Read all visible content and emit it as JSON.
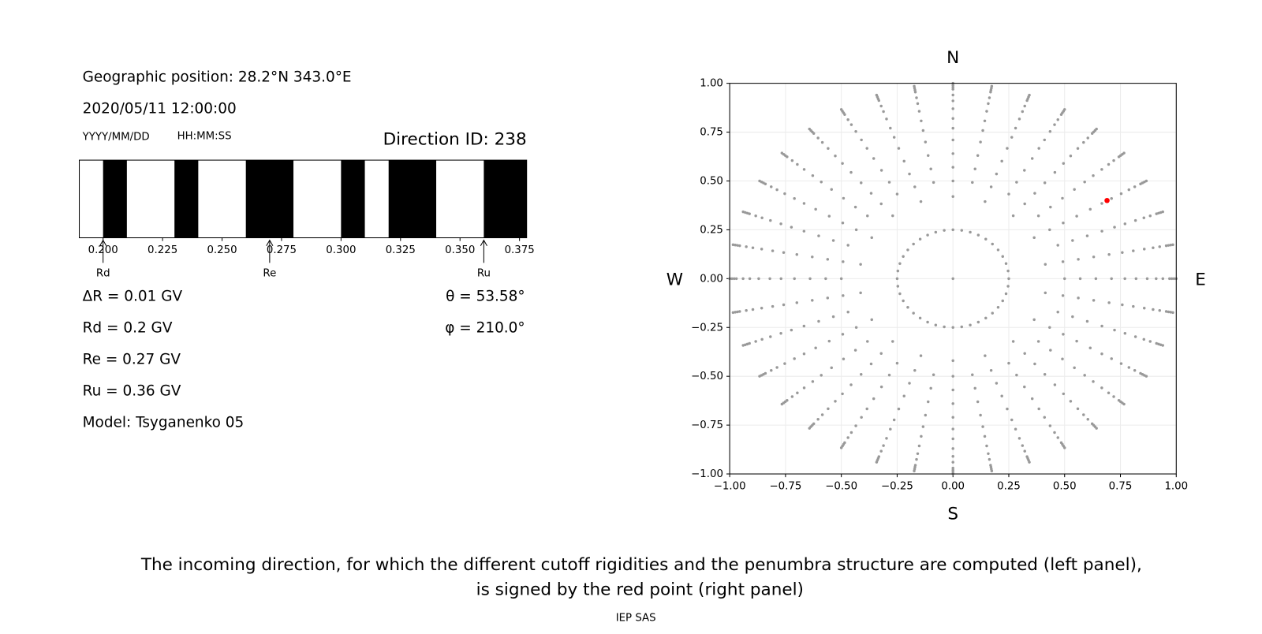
{
  "header": {
    "position": "Geographic position: 28.2°N 343.0°E",
    "datetime": "2020/05/11 12:00:00",
    "date_format": "YYYY/MM/DD",
    "time_format": "HH:MM:SS",
    "direction_id": "Direction ID: 238"
  },
  "parameters": [
    "ΔR = 0.01 GV",
    "Rd = 0.2 GV",
    "Re = 0.27 GV",
    "Ru = 0.36 GV",
    "Model: Tsyganenko 05"
  ],
  "angles": [
    "θ = 53.58°",
    "φ = 210.0°"
  ],
  "caption": [
    "The incoming direction, for which the different cutoff rigidities and the penumbra structure are computed (left panel),",
    "is signed by the red point (right panel)"
  ],
  "footer": "IEP SAS",
  "chart_data": [
    {
      "type": "penumbra",
      "color": "#000000",
      "xlim": [
        0.19,
        0.378
      ],
      "xticks": [
        {
          "value": 0.2,
          "label": "0.200"
        },
        {
          "value": 0.225,
          "label": "0.225"
        },
        {
          "value": 0.25,
          "label": "0.250"
        },
        {
          "value": 0.275,
          "label": "0.275"
        },
        {
          "value": 0.3,
          "label": "0.300"
        },
        {
          "value": 0.325,
          "label": "0.325"
        },
        {
          "value": 0.35,
          "label": "0.350"
        },
        {
          "value": 0.375,
          "label": "0.375"
        }
      ],
      "forbidden_bands": [
        [
          0.2,
          0.21
        ],
        [
          0.23,
          0.24
        ],
        [
          0.26,
          0.28
        ],
        [
          0.3,
          0.31
        ],
        [
          0.32,
          0.34
        ],
        [
          0.36,
          0.378
        ]
      ],
      "markers": [
        {
          "name": "Rd",
          "value": 0.2
        },
        {
          "name": "Re",
          "value": 0.27
        },
        {
          "name": "Ru",
          "value": 0.36
        }
      ]
    },
    {
      "type": "scatter",
      "grid": true,
      "xlim": [
        -1,
        1
      ],
      "ylim": [
        -1,
        1
      ],
      "xticks": [
        {
          "value": -1,
          "label": "−1.00"
        },
        {
          "value": -0.75,
          "label": "−0.75"
        },
        {
          "value": -0.5,
          "label": "−0.50"
        },
        {
          "value": -0.25,
          "label": "−0.25"
        },
        {
          "value": 0,
          "label": "0.00"
        },
        {
          "value": 0.25,
          "label": "0.25"
        },
        {
          "value": 0.5,
          "label": "0.50"
        },
        {
          "value": 0.75,
          "label": "0.75"
        },
        {
          "value": 1,
          "label": "1.00"
        }
      ],
      "yticks": [
        {
          "value": -1,
          "label": "−1.00"
        },
        {
          "value": -0.75,
          "label": "−0.75"
        },
        {
          "value": -0.5,
          "label": "−0.50"
        },
        {
          "value": -0.25,
          "label": "−0.25"
        },
        {
          "value": 0,
          "label": "0.00"
        },
        {
          "value": 0.25,
          "label": "0.25"
        },
        {
          "value": 0.5,
          "label": "0.50"
        },
        {
          "value": 0.75,
          "label": "0.75"
        },
        {
          "value": 1,
          "label": "1.00"
        }
      ],
      "directions": {
        "N": "N",
        "S": "S",
        "E": "E",
        "W": "W"
      },
      "grid_points": {
        "color": "#999999",
        "groups": [
          {
            "radii": [
              0
            ],
            "azimuths": [
              0
            ]
          },
          {
            "radii": [
              0.25
            ],
            "azimuths": [
              0,
              9,
              18,
              27,
              36,
              45,
              54,
              63,
              72,
              81,
              90,
              99,
              108,
              117,
              126,
              135,
              144,
              153,
              162,
              171,
              180,
              189,
              198,
              207,
              216,
              225,
              234,
              243,
              252,
              261,
              270,
              279,
              288,
              297,
              306,
              315,
              324,
              333,
              342,
              351
            ]
          },
          {
            "radii": [
              0.42
            ],
            "azimuths": [
              0,
              20,
              40,
              60,
              80,
              100,
              120,
              140,
              160,
              180,
              200,
              220,
              240,
              260,
              280,
              300,
              320,
              340
            ]
          },
          {
            "radii": [
              0.5,
              0.57,
              0.64,
              0.71,
              0.77,
              0.82,
              0.87,
              0.91,
              0.94,
              0.97,
              0.98,
              0.99,
              1.0
            ],
            "azimuths": [
              0,
              10,
              20,
              30,
              40,
              50,
              60,
              70,
              80,
              90,
              100,
              110,
              120,
              130,
              140,
              150,
              160,
              170,
              180,
              190,
              200,
              210,
              220,
              230,
              240,
              250,
              260,
              270,
              280,
              290,
              300,
              310,
              320,
              330,
              340,
              350
            ]
          }
        ]
      },
      "selected": {
        "x": 0.69,
        "y": 0.4,
        "color": "#ff0000"
      }
    }
  ]
}
